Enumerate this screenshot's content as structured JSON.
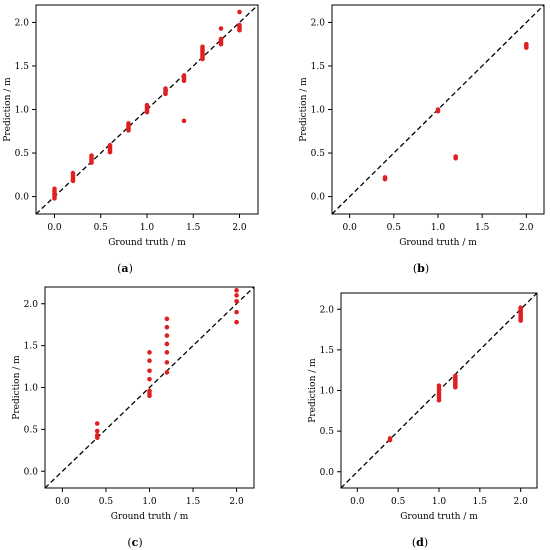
{
  "chart_data": [
    {
      "panel": "(a)",
      "type": "scatter",
      "xlabel": "Ground truth / m",
      "ylabel": "Prediction / m",
      "xlim": [
        -0.2,
        2.2
      ],
      "ylim": [
        -0.2,
        2.2
      ],
      "xticks": [
        "0.0",
        "0.5",
        "1.0",
        "1.5",
        "2.0"
      ],
      "yticks": [
        "0.0",
        "0.5",
        "1.0",
        "1.5",
        "2.0"
      ],
      "reference_line": "y = x (dashed)",
      "point_color": "#e02020",
      "points": [
        [
          0.0,
          -0.02
        ],
        [
          0.0,
          0.0
        ],
        [
          0.0,
          0.02
        ],
        [
          0.0,
          0.04
        ],
        [
          0.0,
          0.06
        ],
        [
          0.0,
          0.09
        ],
        [
          0.2,
          0.18
        ],
        [
          0.2,
          0.2
        ],
        [
          0.2,
          0.22
        ],
        [
          0.2,
          0.24
        ],
        [
          0.2,
          0.27
        ],
        [
          0.4,
          0.39
        ],
        [
          0.4,
          0.41
        ],
        [
          0.4,
          0.43
        ],
        [
          0.4,
          0.45
        ],
        [
          0.4,
          0.47
        ],
        [
          0.6,
          0.51
        ],
        [
          0.6,
          0.53
        ],
        [
          0.6,
          0.55
        ],
        [
          0.6,
          0.57
        ],
        [
          0.6,
          0.59
        ],
        [
          0.8,
          0.76
        ],
        [
          0.8,
          0.78
        ],
        [
          0.8,
          0.8
        ],
        [
          0.8,
          0.82
        ],
        [
          0.8,
          0.84
        ],
        [
          1.0,
          0.97
        ],
        [
          1.0,
          0.99
        ],
        [
          1.0,
          1.01
        ],
        [
          1.0,
          1.03
        ],
        [
          1.0,
          1.05
        ],
        [
          1.2,
          1.18
        ],
        [
          1.2,
          1.2
        ],
        [
          1.2,
          1.22
        ],
        [
          1.2,
          1.24
        ],
        [
          1.4,
          1.33
        ],
        [
          1.4,
          1.35
        ],
        [
          1.4,
          1.37
        ],
        [
          1.4,
          1.39
        ],
        [
          1.4,
          0.87
        ],
        [
          1.6,
          1.58
        ],
        [
          1.6,
          1.6
        ],
        [
          1.6,
          1.62
        ],
        [
          1.6,
          1.64
        ],
        [
          1.6,
          1.66
        ],
        [
          1.6,
          1.68
        ],
        [
          1.6,
          1.7
        ],
        [
          1.6,
          1.72
        ],
        [
          1.8,
          1.75
        ],
        [
          1.8,
          1.77
        ],
        [
          1.8,
          1.79
        ],
        [
          1.8,
          1.81
        ],
        [
          1.8,
          1.93
        ],
        [
          2.0,
          1.91
        ],
        [
          2.0,
          1.93
        ],
        [
          2.0,
          1.95
        ],
        [
          2.0,
          1.97
        ],
        [
          2.0,
          2.12
        ]
      ]
    },
    {
      "panel": "(b)",
      "type": "scatter",
      "xlabel": "Ground truth / m",
      "ylabel": "Prediction / m",
      "xlim": [
        -0.2,
        2.2
      ],
      "ylim": [
        -0.2,
        2.2
      ],
      "xticks": [
        "0.0",
        "0.5",
        "1.0",
        "1.5",
        "2.0"
      ],
      "yticks": [
        "0.0",
        "0.5",
        "1.0",
        "1.5",
        "2.0"
      ],
      "reference_line": "y = x (dashed)",
      "point_color": "#e02020",
      "points": [
        [
          0.4,
          0.2
        ],
        [
          0.4,
          0.22
        ],
        [
          1.0,
          0.98
        ],
        [
          1.0,
          1.0
        ],
        [
          1.2,
          0.44
        ],
        [
          1.2,
          0.46
        ],
        [
          2.0,
          1.71
        ],
        [
          2.0,
          1.73
        ],
        [
          2.0,
          1.75
        ]
      ]
    },
    {
      "panel": "(c)",
      "type": "scatter",
      "xlabel": "Ground truth / m",
      "ylabel": "Prediction / m",
      "xlim": [
        -0.2,
        2.2
      ],
      "ylim": [
        -0.2,
        2.2
      ],
      "xticks": [
        "0.0",
        "0.5",
        "1.0",
        "1.5",
        "2.0"
      ],
      "yticks": [
        "0.0",
        "0.5",
        "1.0",
        "1.5",
        "2.0"
      ],
      "reference_line": "y = x (dashed)",
      "point_color": "#e02020",
      "points": [
        [
          0.4,
          0.4
        ],
        [
          0.4,
          0.43
        ],
        [
          0.4,
          0.48
        ],
        [
          0.4,
          0.57
        ],
        [
          1.0,
          0.9
        ],
        [
          1.0,
          0.93
        ],
        [
          1.0,
          0.96
        ],
        [
          1.0,
          1.1
        ],
        [
          1.0,
          1.2
        ],
        [
          1.0,
          1.32
        ],
        [
          1.0,
          1.42
        ],
        [
          1.2,
          1.18
        ],
        [
          1.2,
          1.3
        ],
        [
          1.2,
          1.42
        ],
        [
          1.2,
          1.52
        ],
        [
          1.2,
          1.62
        ],
        [
          1.2,
          1.72
        ],
        [
          1.2,
          1.82
        ],
        [
          2.0,
          1.78
        ],
        [
          2.0,
          1.9
        ],
        [
          2.0,
          2.03
        ],
        [
          2.0,
          2.1
        ],
        [
          2.0,
          2.16
        ]
      ]
    },
    {
      "panel": "(d)",
      "type": "scatter",
      "xlabel": "Ground truth / m",
      "ylabel": "Prediction / m",
      "xlim": [
        -0.2,
        2.2
      ],
      "ylim": [
        -0.2,
        2.2
      ],
      "xticks": [
        "0.0",
        "0.5",
        "1.0",
        "1.5",
        "2.0"
      ],
      "yticks": [
        "0.0",
        "0.5",
        "1.0",
        "1.5",
        "2.0"
      ],
      "reference_line": "y = x (dashed)",
      "point_color": "#e02020",
      "points": [
        [
          0.4,
          0.39
        ],
        [
          0.4,
          0.41
        ],
        [
          1.0,
          0.88
        ],
        [
          1.0,
          0.91
        ],
        [
          1.0,
          0.94
        ],
        [
          1.0,
          0.97
        ],
        [
          1.0,
          1.0
        ],
        [
          1.0,
          1.03
        ],
        [
          1.0,
          1.06
        ],
        [
          1.2,
          1.04
        ],
        [
          1.2,
          1.06
        ],
        [
          1.2,
          1.08
        ],
        [
          1.2,
          1.1
        ],
        [
          1.2,
          1.12
        ],
        [
          1.2,
          1.14
        ],
        [
          1.2,
          1.16
        ],
        [
          1.2,
          1.18
        ],
        [
          2.0,
          1.86
        ],
        [
          2.0,
          1.88
        ],
        [
          2.0,
          1.9
        ],
        [
          2.0,
          1.92
        ],
        [
          2.0,
          1.94
        ],
        [
          2.0,
          1.96
        ],
        [
          2.0,
          1.98
        ],
        [
          2.0,
          2.0
        ],
        [
          2.0,
          2.02
        ]
      ]
    }
  ]
}
